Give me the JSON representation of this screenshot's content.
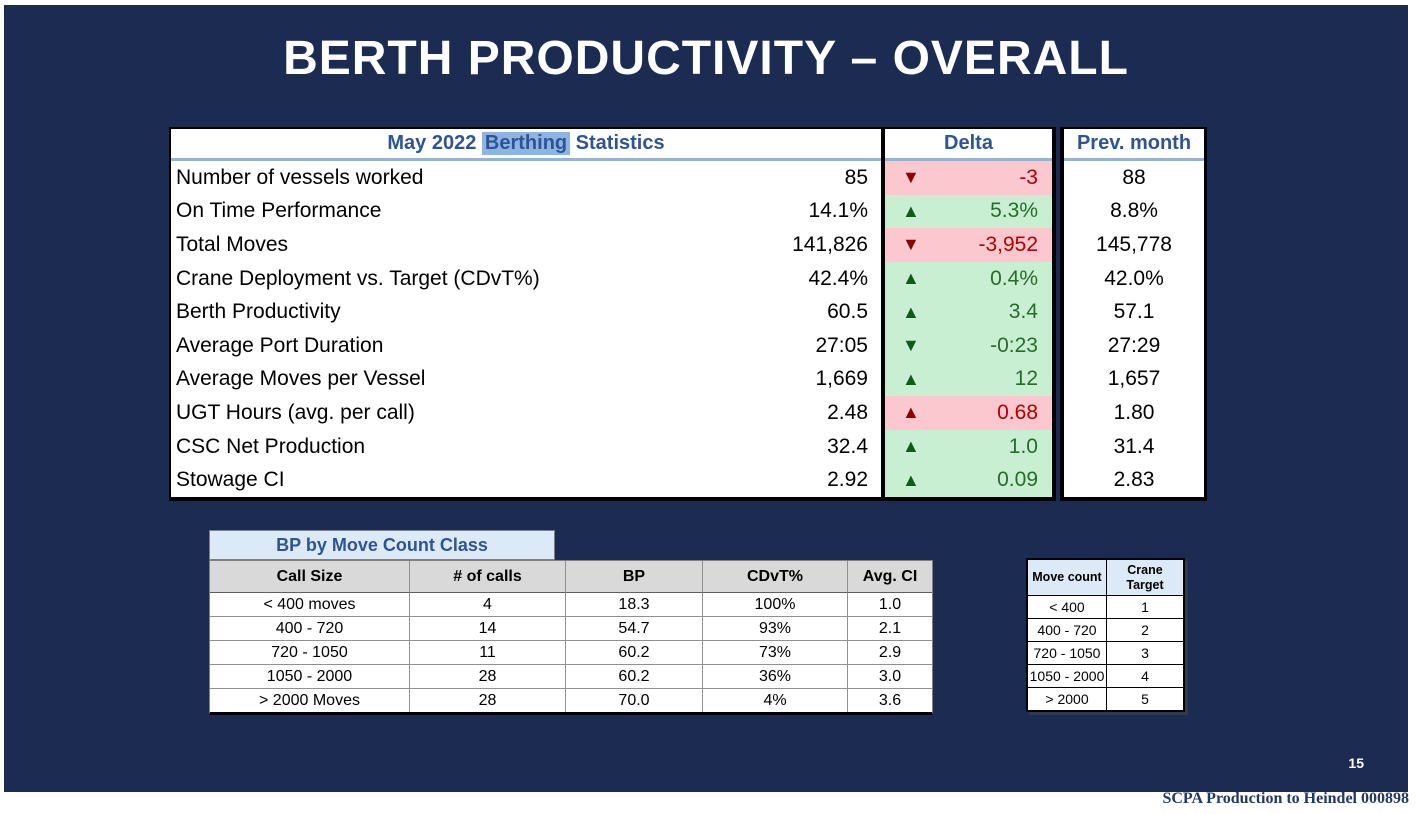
{
  "slide": {
    "title": "BERTH PRODUCTIVITY – OVERALL",
    "page_number": "15",
    "footer": "SCPA Production to Heindel 000898"
  },
  "stats_table": {
    "header": {
      "title_prefix": "May 2022 ",
      "title_highlight": "Berthing",
      "title_suffix": " Statistics",
      "delta_label": "Delta",
      "prev_label": "Prev. month"
    },
    "rows": [
      {
        "label": "Number of vessels worked",
        "value": "85",
        "delta": "-3",
        "direction": "down",
        "sentiment": "bad",
        "prev": "88"
      },
      {
        "label": "On Time Performance",
        "value": "14.1%",
        "delta": "5.3%",
        "direction": "up",
        "sentiment": "good",
        "prev": "8.8%"
      },
      {
        "label": "Total Moves",
        "value": "141,826",
        "delta": "-3,952",
        "direction": "down",
        "sentiment": "bad",
        "prev": "145,778"
      },
      {
        "label": "Crane Deployment vs. Target (CDvT%)",
        "value": "42.4%",
        "delta": "0.4%",
        "direction": "up",
        "sentiment": "good",
        "prev": "42.0%"
      },
      {
        "label": "Berth Productivity",
        "value": "60.5",
        "delta": "3.4",
        "direction": "up",
        "sentiment": "good",
        "prev": "57.1"
      },
      {
        "label": "Average Port Duration",
        "value": "27:05",
        "delta": "-0:23",
        "direction": "down",
        "sentiment": "good",
        "prev": "27:29"
      },
      {
        "label": "Average Moves per Vessel",
        "value": "1,669",
        "delta": "12",
        "direction": "up",
        "sentiment": "good",
        "prev": "1,657"
      },
      {
        "label": "UGT Hours (avg. per call)",
        "value": "2.48",
        "delta": "0.68",
        "direction": "up",
        "sentiment": "bad",
        "prev": "1.80"
      },
      {
        "label": "CSC Net Production",
        "value": "32.4",
        "delta": "1.0",
        "direction": "up",
        "sentiment": "good",
        "prev": "31.4"
      },
      {
        "label": "Stowage CI",
        "value": "2.92",
        "delta": "0.09",
        "direction": "up",
        "sentiment": "good",
        "prev": "2.83"
      }
    ]
  },
  "bp_table": {
    "title": "BP by Move Count Class",
    "columns": [
      "Call Size",
      "# of calls",
      "BP",
      "CDvT%",
      "Avg. CI"
    ],
    "rows": [
      [
        "< 400 moves",
        "4",
        "18.3",
        "100%",
        "1.0"
      ],
      [
        "400 - 720",
        "14",
        "54.7",
        "93%",
        "2.1"
      ],
      [
        "720 - 1050",
        "11",
        "60.2",
        "73%",
        "2.9"
      ],
      [
        "1050 - 2000",
        "28",
        "60.2",
        "36%",
        "3.0"
      ],
      [
        "> 2000 Moves",
        "28",
        "70.0",
        "4%",
        "3.6"
      ]
    ]
  },
  "crane_table": {
    "columns": [
      "Move count",
      "Crane Target"
    ],
    "rows": [
      [
        "< 400",
        "1"
      ],
      [
        "400 - 720",
        "2"
      ],
      [
        "720 - 1050",
        "3"
      ],
      [
        "1050 - 2000",
        "4"
      ],
      [
        "> 2000",
        "5"
      ]
    ]
  },
  "icons": {
    "up_arrow": "▲",
    "down_arrow": "▼"
  },
  "colors": {
    "navy": "#1B2B52",
    "steel": "#2F5496",
    "rule": "#95B3D7",
    "highlight": "#8DB4E2",
    "good_bg": "#C9EFD2",
    "good_text": "#256D2A",
    "good_arrow": "#0E5C17",
    "bad_bg": "#FAC8CE",
    "bad_text": "#B00000",
    "bad_arrow": "#8B0000",
    "light_blue": "#DCE9F7",
    "header_gray": "#D9D9D9",
    "footer_navy": "#1F3864"
  }
}
